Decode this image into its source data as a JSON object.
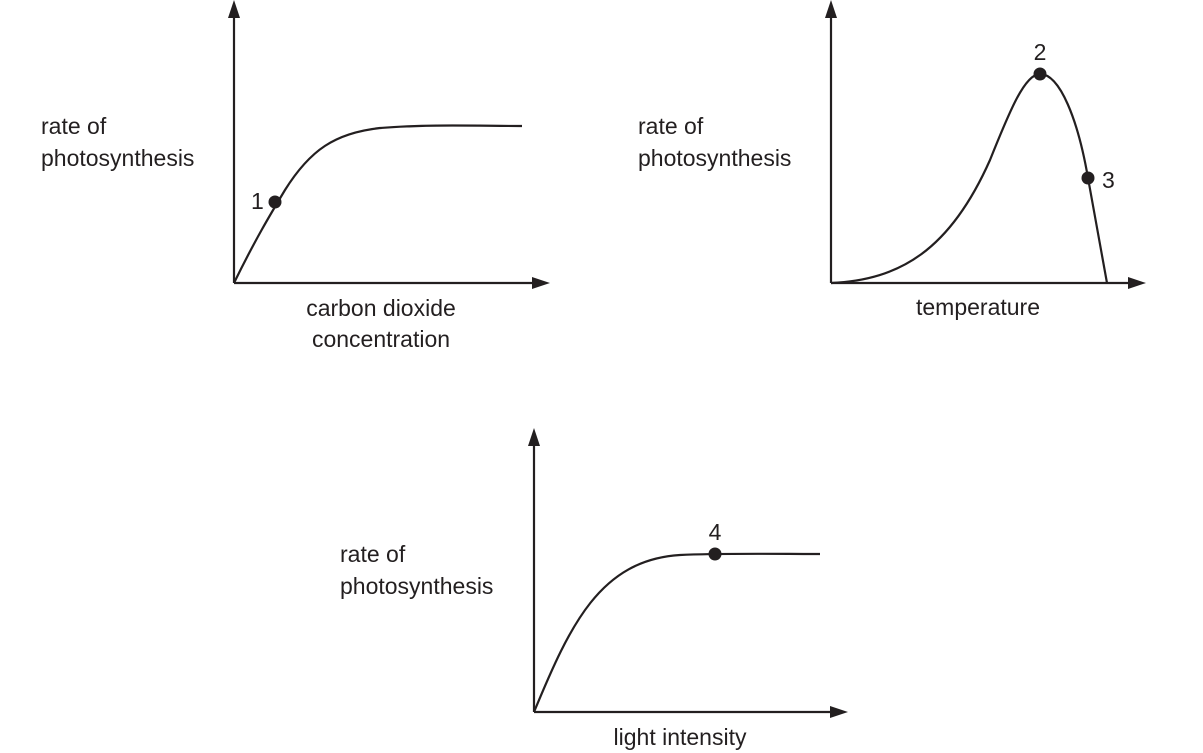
{
  "graphs": [
    {
      "y_label_line1": "rate of",
      "y_label_line2": "photosynthesis",
      "x_label_line1": "carbon dioxide",
      "x_label_line2": "concentration",
      "points": [
        "1"
      ]
    },
    {
      "y_label_line1": "rate of",
      "y_label_line2": "photosynthesis",
      "x_label_line1": "temperature",
      "points": [
        "2",
        "3"
      ]
    },
    {
      "y_label_line1": "rate of",
      "y_label_line2": "photosynthesis",
      "x_label_line1": "light intensity",
      "points": [
        "4"
      ]
    }
  ],
  "colors": {
    "ink": "#231f20",
    "background": "#ffffff"
  }
}
